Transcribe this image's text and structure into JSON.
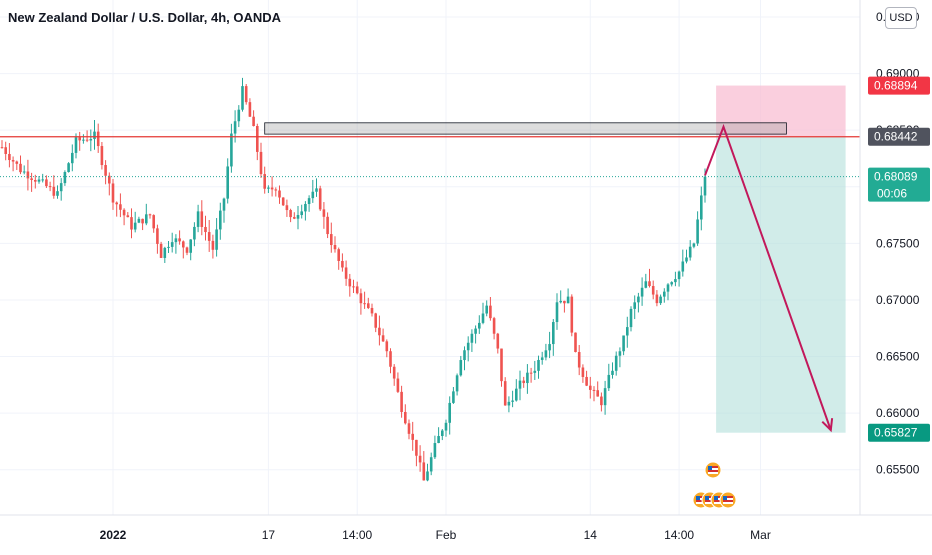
{
  "header": {
    "title": "New Zealand Dollar / U.S. Dollar, 4h, OANDA",
    "currency_button": "USD"
  },
  "colors": {
    "up": "#26a69a",
    "down": "#ef5350",
    "resistance_line": "#e53935",
    "current_price_line": "#26a69a",
    "stop_zone": "#f8bbd0",
    "target_zone": "#b2dfdb",
    "arrow": "#c2185b",
    "axis_text": "#131722",
    "label_red": "#f23645",
    "label_dark": "#50535e",
    "label_teal": "#22ab94",
    "label_green": "#089981"
  },
  "chart_data": {
    "type": "candlestick",
    "symbol": "NZDUSD",
    "timeframe": "4h",
    "ylim": [
      0.651,
      0.6965
    ],
    "y_ticks": [
      {
        "value": 0.695,
        "label": "0.69500"
      },
      {
        "value": 0.69,
        "label": "0.69000"
      },
      {
        "value": 0.685,
        "label": "0.68500"
      },
      {
        "value": 0.68,
        "label": "0.68000"
      },
      {
        "value": 0.675,
        "label": "0.67500"
      },
      {
        "value": 0.67,
        "label": "0.67000"
      },
      {
        "value": 0.665,
        "label": "0.66500"
      },
      {
        "value": 0.66,
        "label": "0.66000"
      },
      {
        "value": 0.655,
        "label": "0.65500"
      }
    ],
    "x_ticks": [
      {
        "index": 30,
        "label": "2022",
        "bold": true
      },
      {
        "index": 72,
        "label": "17",
        "bold": false
      },
      {
        "index": 96,
        "label": "14:00",
        "bold": false
      },
      {
        "index": 120,
        "label": "Feb",
        "bold": false
      },
      {
        "index": 159,
        "label": "14",
        "bold": false
      },
      {
        "index": 183,
        "label": "14:00",
        "bold": false
      },
      {
        "index": 205,
        "label": "Mar",
        "bold": false
      }
    ],
    "price_path": [
      [
        0,
        0.6835
      ],
      [
        5,
        0.6815
      ],
      [
        10,
        0.6805
      ],
      [
        15,
        0.6793
      ],
      [
        20,
        0.684
      ],
      [
        25,
        0.6845
      ],
      [
        30,
        0.679
      ],
      [
        35,
        0.6765
      ],
      [
        40,
        0.6775
      ],
      [
        43,
        0.674
      ],
      [
        46,
        0.6755
      ],
      [
        50,
        0.6745
      ],
      [
        53,
        0.6775
      ],
      [
        57,
        0.6745
      ],
      [
        60,
        0.679
      ],
      [
        62,
        0.6845
      ],
      [
        65,
        0.6885
      ],
      [
        68,
        0.685
      ],
      [
        71,
        0.6795
      ],
      [
        74,
        0.68
      ],
      [
        78,
        0.677
      ],
      [
        83,
        0.679
      ],
      [
        85,
        0.6795
      ],
      [
        88,
        0.676
      ],
      [
        92,
        0.6725
      ],
      [
        96,
        0.6705
      ],
      [
        100,
        0.6685
      ],
      [
        104,
        0.6655
      ],
      [
        108,
        0.6605
      ],
      [
        112,
        0.6565
      ],
      [
        114,
        0.654
      ],
      [
        117,
        0.657
      ],
      [
        120,
        0.6595
      ],
      [
        124,
        0.665
      ],
      [
        128,
        0.6675
      ],
      [
        131,
        0.6695
      ],
      [
        134,
        0.6655
      ],
      [
        136,
        0.6605
      ],
      [
        140,
        0.6625
      ],
      [
        144,
        0.664
      ],
      [
        148,
        0.6665
      ],
      [
        150,
        0.67
      ],
      [
        153,
        0.67
      ],
      [
        155,
        0.665
      ],
      [
        159,
        0.662
      ],
      [
        162,
        0.661
      ],
      [
        165,
        0.664
      ],
      [
        168,
        0.6665
      ],
      [
        170,
        0.669
      ],
      [
        174,
        0.6715
      ],
      [
        177,
        0.67
      ],
      [
        180,
        0.6715
      ],
      [
        183,
        0.6725
      ],
      [
        187,
        0.675
      ],
      [
        190,
        0.681
      ]
    ],
    "resistance_level": 0.68442,
    "resistance_zone": {
      "x_start": 71,
      "x_end": 212,
      "y_top": 0.68565,
      "y_bottom": 0.68465
    },
    "short_position": {
      "x_start": 193,
      "x_end": 228,
      "entry": 0.68442,
      "stop": 0.68894,
      "target": 0.65827
    },
    "projection_arrow": [
      [
        190,
        0.681
      ],
      [
        195,
        0.6853
      ],
      [
        224,
        0.6585
      ]
    ],
    "current_price": 0.68089,
    "countdown": "00:06",
    "price_labels": [
      {
        "text": "0.68894",
        "value": 0.68894,
        "style": "red"
      },
      {
        "text": "0.68442",
        "value": 0.68442,
        "style": "dark"
      },
      {
        "text": "0.68089",
        "value": 0.68089,
        "style": "teal"
      },
      {
        "text": "0.65827",
        "value": 0.65827,
        "style": "green"
      }
    ]
  }
}
